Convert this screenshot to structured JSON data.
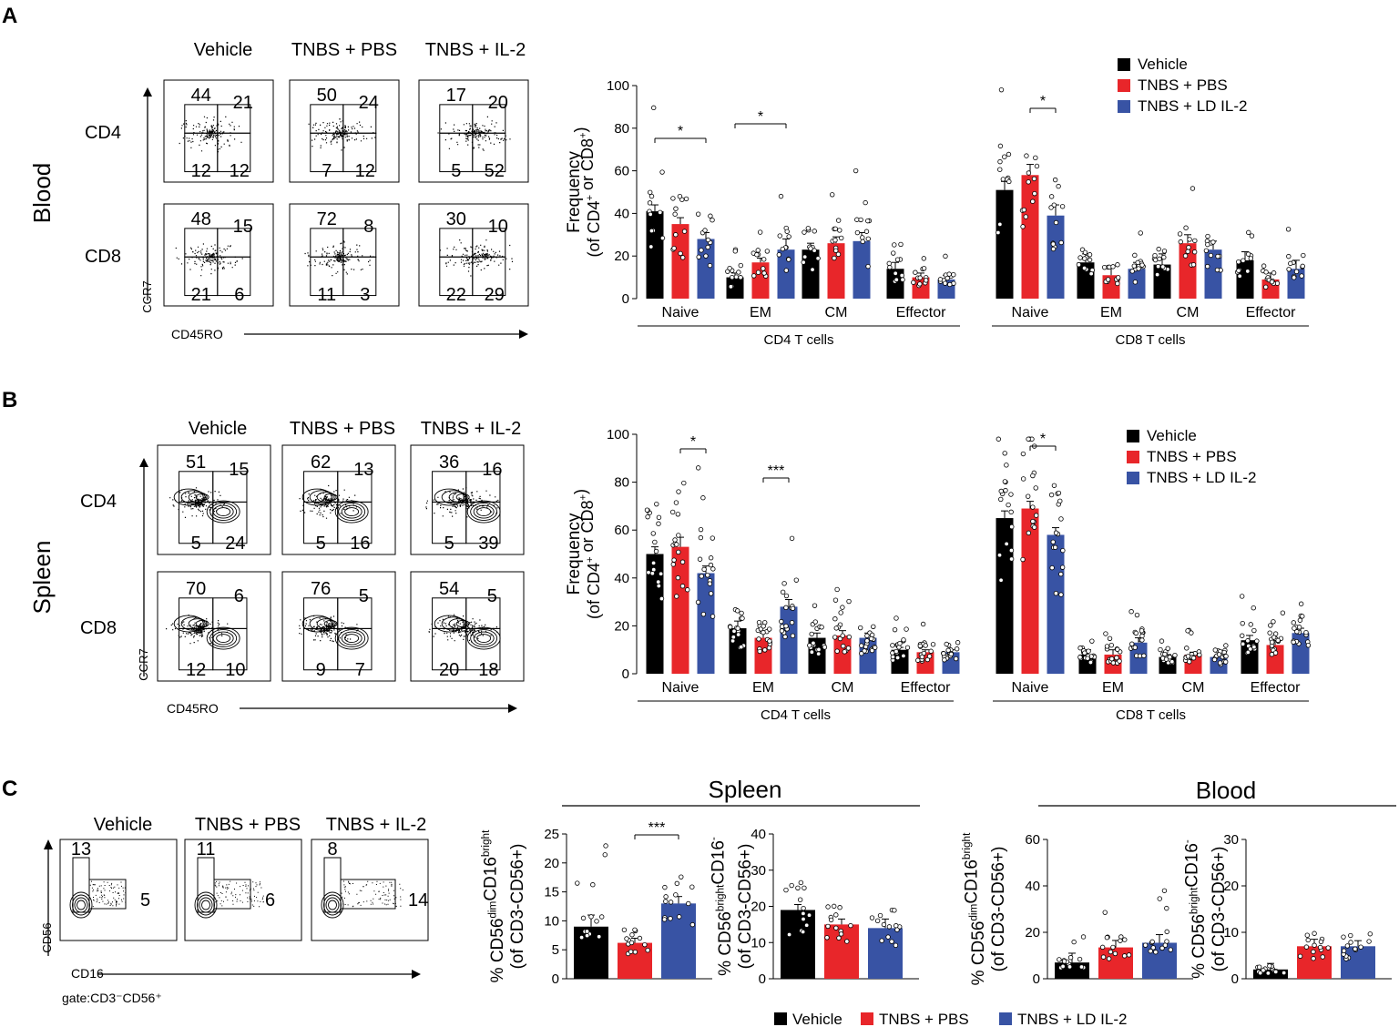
{
  "panels": {
    "a": "A",
    "b": "B",
    "c": "C"
  },
  "groups3": [
    "Vehicle",
    "TNBS + PBS",
    "TNBS + IL-2"
  ],
  "legend": [
    "Vehicle",
    "TNBS + PBS",
    "TNBS + LD IL-2"
  ],
  "colors": {
    "vehicle": "#000000",
    "pbs": "#e8262a",
    "il2": "#3853a4"
  },
  "flow_A": {
    "tissue": "Blood",
    "rows": [
      "CD4",
      "CD8"
    ],
    "yaxis": "CCR7",
    "xaxis": "CD45RO",
    "numbers": [
      [
        [
          "44",
          "21",
          "12",
          "12"
        ],
        [
          "50",
          "24",
          "7",
          "12"
        ],
        [
          "17",
          "20",
          "5",
          "52"
        ]
      ],
      [
        [
          "48",
          "15",
          "21",
          "6"
        ],
        [
          "72",
          "8",
          "11",
          "3"
        ],
        [
          "30",
          "10",
          "22",
          "29"
        ]
      ]
    ]
  },
  "flow_B": {
    "tissue": "Spleen",
    "rows": [
      "CD4",
      "CD8"
    ],
    "yaxis": "CCR7",
    "xaxis": "CD45RO",
    "numbers": [
      [
        [
          "51",
          "15",
          "5",
          "24"
        ],
        [
          "62",
          "13",
          "5",
          "16"
        ],
        [
          "36",
          "16",
          "5",
          "39"
        ]
      ],
      [
        [
          "70",
          "6",
          "12",
          "10"
        ],
        [
          "76",
          "5",
          "9",
          "7"
        ],
        [
          "54",
          "5",
          "20",
          "18"
        ]
      ]
    ]
  },
  "flow_C": {
    "yaxis": "CD56",
    "xaxis": "CD16",
    "gate": "gate:CD3⁻CD56⁺",
    "numbers": [
      [
        "13",
        "5"
      ],
      [
        "11",
        "6"
      ],
      [
        "8",
        "14"
      ]
    ]
  },
  "headers_C": {
    "spleen": "Spleen",
    "blood": "Blood"
  },
  "chart_data": [
    {
      "type": "bar",
      "title": "Blood",
      "ylabel": "Frequency (of CD4⁺ or CD8⁺)",
      "ylim": [
        0,
        100
      ],
      "yticks": [
        0,
        20,
        40,
        60,
        80,
        100
      ],
      "categories": [
        "Naive",
        "EM",
        "CM",
        "Effector",
        "Naive",
        "EM",
        "CM",
        "Effector"
      ],
      "category_groups": [
        {
          "label": "CD4 T cells",
          "span": [
            0,
            3
          ]
        },
        {
          "label": "CD8 T cells",
          "span": [
            4,
            7
          ]
        }
      ],
      "series": [
        {
          "name": "Vehicle",
          "values": [
            41,
            10,
            23,
            14,
            51,
            17,
            16,
            18
          ],
          "err": [
            3,
            2,
            3,
            3,
            4,
            4,
            5,
            4
          ]
        },
        {
          "name": "TNBS + PBS",
          "values": [
            35,
            17,
            26,
            10,
            58,
            11,
            26,
            9
          ],
          "err": [
            3,
            2,
            3,
            2,
            5,
            4,
            4,
            3
          ]
        },
        {
          "name": "TNBS + LD IL-2",
          "values": [
            28,
            23,
            27,
            9,
            39,
            14,
            23,
            14
          ],
          "err": [
            3,
            5,
            4,
            2,
            5,
            3,
            4,
            4
          ]
        }
      ],
      "significance": [
        {
          "cat": 0,
          "from": 0,
          "to": 2,
          "label": "*"
        },
        {
          "cat": 1,
          "from": 0,
          "to": 2,
          "label": "*"
        },
        {
          "cat": 4,
          "from": 1,
          "to": 2,
          "label": "*"
        }
      ]
    },
    {
      "type": "bar",
      "title": "Spleen",
      "ylabel": "Frequency (of CD4⁺ or CD8⁺)",
      "ylim": [
        0,
        100
      ],
      "yticks": [
        0,
        20,
        40,
        60,
        80,
        100
      ],
      "categories": [
        "Naive",
        "EM",
        "CM",
        "Effector",
        "Naive",
        "EM",
        "CM",
        "Effector"
      ],
      "category_groups": [
        {
          "label": "CD4 T cells",
          "span": [
            0,
            3
          ]
        },
        {
          "label": "CD8 T cells",
          "span": [
            4,
            7
          ]
        }
      ],
      "series": [
        {
          "name": "Vehicle",
          "values": [
            50,
            19,
            15,
            10,
            65,
            8,
            7,
            14
          ],
          "err": [
            3,
            3,
            2,
            1,
            3,
            2,
            1,
            2
          ]
        },
        {
          "name": "TNBS + PBS",
          "values": [
            53,
            15,
            16,
            9,
            69,
            8,
            8,
            12
          ],
          "err": [
            4,
            2,
            2,
            1,
            3,
            2,
            1,
            2
          ]
        },
        {
          "name": "TNBS + LD IL-2",
          "values": [
            42,
            28,
            15,
            9,
            58,
            13,
            7,
            17
          ],
          "err": [
            3,
            3,
            2,
            1,
            3,
            2,
            1,
            2
          ]
        }
      ],
      "significance": [
        {
          "cat": 0,
          "from": 1,
          "to": 2,
          "label": "*"
        },
        {
          "cat": 1,
          "from": 1,
          "to": 2,
          "label": "***"
        },
        {
          "cat": 4,
          "from": 1,
          "to": 2,
          "label": "*"
        }
      ]
    },
    {
      "type": "bar",
      "title": "Spleen",
      "ylabel": "% CD56dimCD16bright (of CD3-CD56+)",
      "ylim": [
        0,
        25
      ],
      "yticks": [
        0,
        5,
        10,
        15,
        20,
        25
      ],
      "categories": [
        "Vehicle",
        "TNBS + PBS",
        "TNBS + LD IL-2"
      ],
      "values": [
        9,
        6.2,
        13
      ],
      "err": [
        2,
        0.8,
        1.2
      ],
      "significance": [
        {
          "from": 1,
          "to": 2,
          "label": "***"
        }
      ]
    },
    {
      "type": "bar",
      "title": "Spleen",
      "ylabel": "% CD56brightCD16- (of CD3-CD56+)",
      "ylim": [
        0,
        40
      ],
      "yticks": [
        0,
        10,
        20,
        30,
        40
      ],
      "categories": [
        "Vehicle",
        "TNBS + PBS",
        "TNBS + LD IL-2"
      ],
      "values": [
        19,
        15,
        14
      ],
      "err": [
        1.5,
        1.5,
        2.5
      ],
      "significance": []
    },
    {
      "type": "bar",
      "title": "Blood",
      "ylabel": "% CD56dimCD16bright (of CD3-CD56+)",
      "ylim": [
        0,
        60
      ],
      "yticks": [
        0,
        20,
        40,
        60
      ],
      "categories": [
        "Vehicle",
        "TNBS + PBS",
        "TNBS + LD IL-2"
      ],
      "values": [
        7,
        13.5,
        15.5
      ],
      "err": [
        4,
        3,
        3.5
      ],
      "significance": []
    },
    {
      "type": "bar",
      "title": "Blood",
      "ylabel": "% CD56brightCD16- (of CD3-CD56+)",
      "ylim": [
        0,
        30
      ],
      "yticks": [
        0,
        10,
        20,
        30
      ],
      "categories": [
        "Vehicle",
        "TNBS + PBS",
        "TNBS + LD IL-2"
      ],
      "values": [
        2,
        7,
        7
      ],
      "err": [
        1.3,
        1.5,
        1.2
      ],
      "significance": []
    }
  ]
}
